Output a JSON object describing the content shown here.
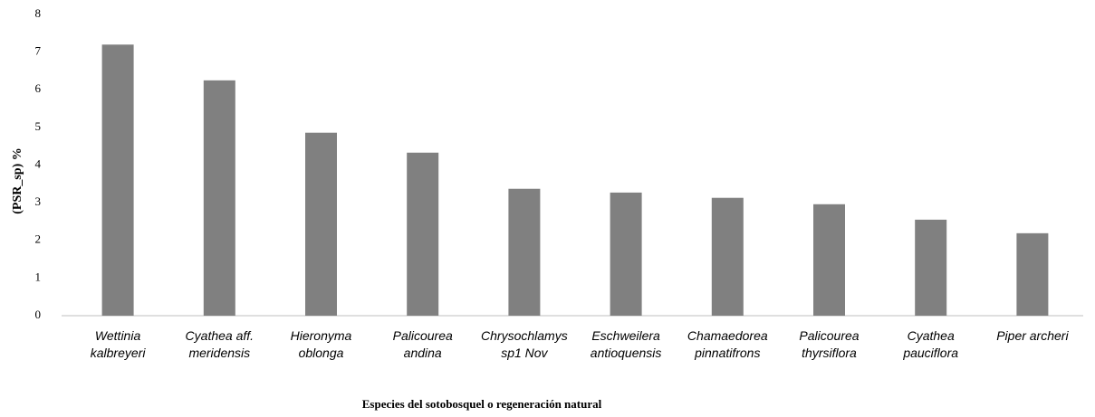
{
  "chart_data": {
    "type": "bar",
    "ylabel": "(PSR_sp) %",
    "xlabel": "Especies del sotobosquel o regeneración natural",
    "categories": [
      "Wettinia kalbreyeri",
      "Cyathea aff. meridensis",
      "Hieronyma oblonga",
      "Palicourea andina",
      "Chrysochlamys sp1 Nov",
      "Eschweilera antioquensis",
      "Chamaedorea pinnatifrons",
      "Palicourea thyrsiflora",
      "Cyathea pauciflora",
      "Piper archeri"
    ],
    "values": [
      7.2,
      6.25,
      4.86,
      4.33,
      3.37,
      3.27,
      3.13,
      2.96,
      2.55,
      2.19
    ],
    "color": "#808080",
    "ylim": [
      0,
      8
    ],
    "yticks": [
      0,
      1,
      2,
      3,
      4,
      5,
      6,
      7,
      8
    ],
    "grid": false
  }
}
